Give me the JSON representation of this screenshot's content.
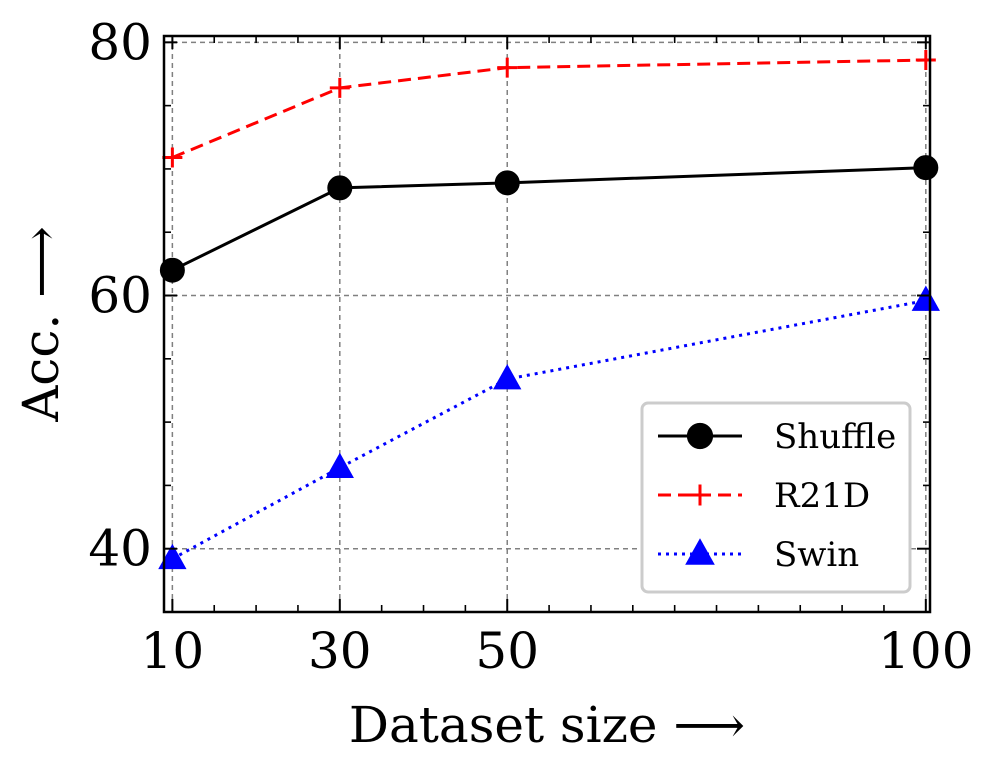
{
  "chart_data": {
    "type": "line",
    "title": "",
    "xlabel": "Dataset size ⟶",
    "ylabel": "Acc. ⟶",
    "xlim": [
      9,
      100.5
    ],
    "ylim": [
      35,
      80.5
    ],
    "x": [
      10,
      30,
      50,
      100
    ],
    "xticks": [
      10,
      30,
      50,
      100
    ],
    "xtick_labels": [
      "10",
      "30",
      "50",
      "100"
    ],
    "yticks": [
      40,
      60,
      80
    ],
    "ytick_labels": [
      "40",
      "60",
      "80"
    ],
    "grid": true,
    "legend_position": "lower-right",
    "series": [
      {
        "name": "Shuffle",
        "values": [
          62.0,
          68.5,
          68.9,
          70.1
        ],
        "color": "#000000",
        "dash": "solid",
        "marker": "circle"
      },
      {
        "name": "R21D",
        "values": [
          70.9,
          76.4,
          78.0,
          78.6
        ],
        "color": "#ff0000",
        "dash": "dashed",
        "marker": "plus"
      },
      {
        "name": "Swin",
        "values": [
          39.2,
          46.4,
          53.4,
          59.6
        ],
        "color": "#0000ff",
        "dash": "dotted",
        "marker": "triangle"
      }
    ]
  }
}
